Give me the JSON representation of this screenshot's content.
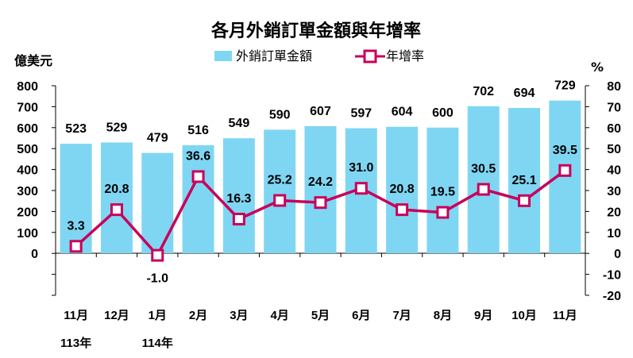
{
  "chart_data": {
    "type": "bar",
    "title": "各月外銷訂單金額與年增率",
    "left_axis_unit": "億美元",
    "right_axis_unit": "%",
    "categories": [
      "11月",
      "12月",
      "1月",
      "2月",
      "3月",
      "4月",
      "5月",
      "6月",
      "7月",
      "8月",
      "9月",
      "10月",
      "11月"
    ],
    "category_sublabels": [
      "113年",
      "",
      "114年",
      "",
      "",
      "",
      "",
      "",
      "",
      "",
      "",
      "",
      ""
    ],
    "left_ticks": [
      "800",
      "700",
      "600",
      "500",
      "400",
      "300",
      "200",
      "100",
      "0"
    ],
    "right_ticks": [
      "80",
      "70",
      "60",
      "50",
      "40",
      "30",
      "20",
      "10",
      "0",
      "-10",
      "-20"
    ],
    "ylim_left": [
      -200,
      800
    ],
    "ylim_right": [
      -20,
      80
    ],
    "series": [
      {
        "name": "外銷訂單金額",
        "type": "bar",
        "axis": "left",
        "color": "#7fd6f3",
        "values": [
          523,
          529,
          479,
          516,
          549,
          590,
          607,
          597,
          604,
          600,
          702,
          694,
          729
        ],
        "labels": [
          "523",
          "529",
          "479",
          "516",
          "549",
          "590",
          "607",
          "597",
          "604",
          "600",
          "702",
          "694",
          "729"
        ]
      },
      {
        "name": "年增率",
        "type": "line",
        "axis": "right",
        "color": "#c8005a",
        "values": [
          3.3,
          20.8,
          -1.0,
          36.6,
          16.3,
          25.2,
          24.2,
          31.0,
          20.8,
          19.5,
          30.5,
          25.1,
          39.5
        ],
        "labels": [
          "3.3",
          "20.8",
          "-1.0",
          "36.6",
          "16.3",
          "25.2",
          "24.2",
          "31.0",
          "20.8",
          "19.5",
          "30.5",
          "25.1",
          "39.5"
        ]
      }
    ],
    "legend": {
      "bar_label": "外銷訂單金額",
      "line_label": "年增率"
    }
  }
}
